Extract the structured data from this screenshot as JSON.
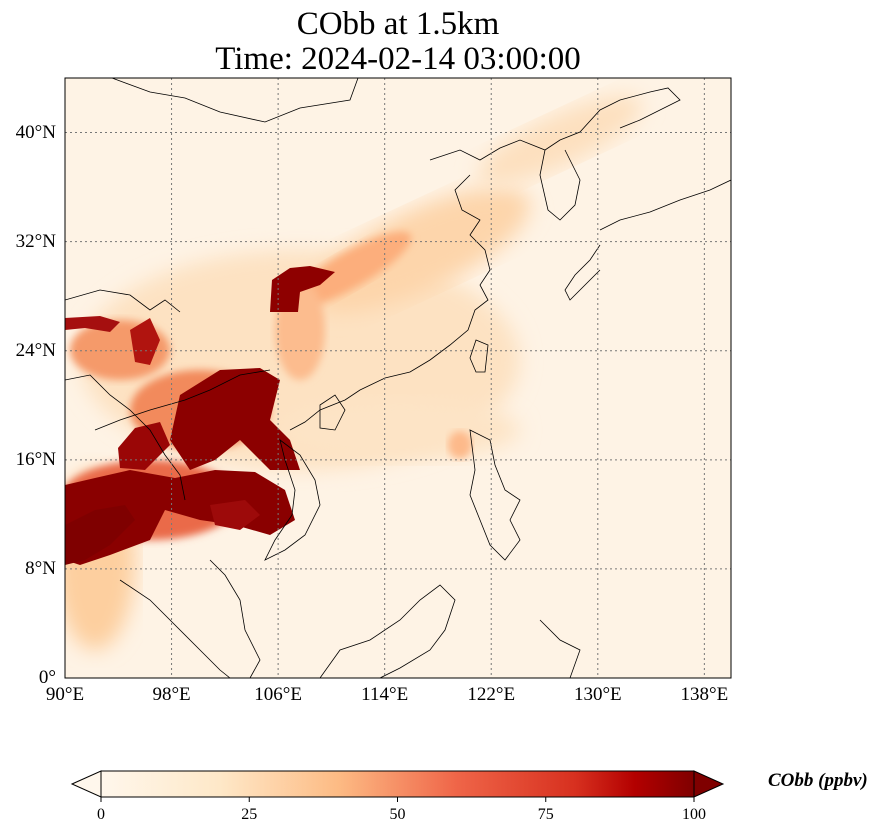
{
  "title": {
    "line1": "CObb at 1.5km",
    "line2": "Time: 2024-02-14 03:00:00"
  },
  "map": {
    "extent": {
      "lon": [
        90,
        140
      ],
      "lat": [
        0,
        44
      ]
    },
    "lat_ticks": [
      {
        "value": 0,
        "label": "0°"
      },
      {
        "value": 8,
        "label": "8°N"
      },
      {
        "value": 16,
        "label": "16°N"
      },
      {
        "value": 24,
        "label": "24°N"
      },
      {
        "value": 32,
        "label": "32°N"
      },
      {
        "value": 40,
        "label": "40°N"
      }
    ],
    "lon_ticks": [
      {
        "value": 90,
        "label": "90°E"
      },
      {
        "value": 98,
        "label": "98°E"
      },
      {
        "value": 106,
        "label": "106°E"
      },
      {
        "value": 114,
        "label": "114°E"
      },
      {
        "value": 122,
        "label": "122°E"
      },
      {
        "value": 130,
        "label": "130°E"
      },
      {
        "value": 138,
        "label": "138°E"
      }
    ],
    "gridlines": true,
    "colormap": "OrRd",
    "colors": {
      "low": "#fff7ec",
      "mid": "#fdbb84",
      "high": "#d7301f",
      "max": "#7f0000",
      "coast": "#000000"
    }
  },
  "colorbar": {
    "label": "CObb (ppbv)",
    "ticks": [
      {
        "value": 0,
        "label": "0"
      },
      {
        "value": 25,
        "label": "25"
      },
      {
        "value": 50,
        "label": "50"
      },
      {
        "value": 75,
        "label": "75"
      },
      {
        "value": 100,
        "label": "100"
      }
    ],
    "range": [
      0,
      100
    ],
    "extend": "both"
  }
}
